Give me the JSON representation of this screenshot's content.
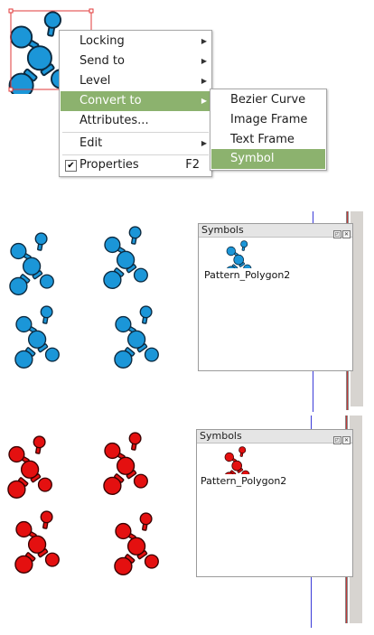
{
  "context_menu": {
    "items": [
      {
        "label": "Locking",
        "has_submenu": true
      },
      {
        "label": "Send to",
        "has_submenu": true
      },
      {
        "label": "Level",
        "has_submenu": true
      },
      {
        "label": "Convert to",
        "has_submenu": true,
        "highlighted": true
      },
      {
        "label": "Attributes..."
      },
      {
        "label": "Edit",
        "has_submenu": true
      },
      {
        "label": "Properties",
        "shortcut": "F2",
        "checked": true
      }
    ]
  },
  "convert_submenu": {
    "items": [
      {
        "label": "Bezier Curve"
      },
      {
        "label": "Image Frame"
      },
      {
        "label": "Text Frame"
      },
      {
        "label": "Symbol",
        "highlighted": true
      }
    ]
  },
  "symbols_palette_blue": {
    "title": "Symbols",
    "symbol_name": "Pattern_Polygon2"
  },
  "symbols_palette_red": {
    "title": "Symbols",
    "symbol_name": "Pattern_Polygon2"
  },
  "icons": {
    "submenu_arrow": "right-triangle-icon",
    "check": "checkmark-icon",
    "palette_float": "float-icon",
    "palette_close": "close-icon"
  },
  "colors": {
    "menu_highlight": "#8cb26e",
    "molecule_blue": "#1b96d8",
    "molecule_red": "#e41010",
    "selection_red": "#e23a3a",
    "guide_blue": "#3b3bd8"
  }
}
